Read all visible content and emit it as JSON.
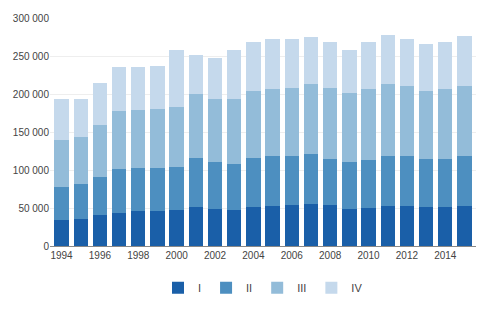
{
  "chart_data": {
    "type": "bar",
    "stacked": true,
    "categories": [
      "1994",
      null,
      "1996",
      null,
      "1998",
      null,
      "2000",
      null,
      "2002",
      null,
      "2004",
      null,
      "2006",
      null,
      "2008",
      null,
      "2010",
      null,
      "2012",
      null,
      "2014",
      null
    ],
    "series": [
      {
        "name": "I",
        "color": "#1a5fa8",
        "values": [
          34000,
          36000,
          41000,
          43000,
          46000,
          46000,
          47000,
          51000,
          49000,
          48000,
          51000,
          53000,
          54000,
          55000,
          54000,
          49000,
          50000,
          53000,
          53000,
          51000,
          51000,
          53000
        ]
      },
      {
        "name": "II",
        "color": "#4d8fc0",
        "values": [
          44000,
          45000,
          50000,
          58000,
          57000,
          57000,
          57000,
          65000,
          61000,
          60000,
          65000,
          65000,
          65000,
          66000,
          60000,
          62000,
          63000,
          66000,
          66000,
          63000,
          64000,
          65000
        ]
      },
      {
        "name": "III",
        "color": "#93bcd9",
        "values": [
          62000,
          63000,
          68000,
          77000,
          76000,
          77000,
          79000,
          84000,
          83000,
          85000,
          88000,
          89000,
          89000,
          92000,
          94000,
          90000,
          94000,
          94000,
          92000,
          90000,
          91000,
          93000
        ]
      },
      {
        "name": "IV",
        "color": "#c5d9ec",
        "values": [
          54000,
          50000,
          55000,
          57000,
          56000,
          57000,
          75000,
          51000,
          55000,
          65000,
          65000,
          66000,
          65000,
          62000,
          60000,
          57000,
          62000,
          65000,
          62000,
          62000,
          62000,
          65000
        ]
      }
    ],
    "ylim": [
      0,
      300000
    ],
    "yticks": [
      0,
      {
        "value": 50000,
        "label": "50 000"
      },
      {
        "value": 100000,
        "label": "100 000"
      },
      {
        "value": 150000,
        "label": "150 000"
      },
      {
        "value": 200000,
        "label": "200 000"
      },
      {
        "value": 250000,
        "label": "250 000"
      },
      {
        "value": 300000,
        "label": "300 000"
      }
    ],
    "grid": true,
    "legend": "bottom"
  }
}
